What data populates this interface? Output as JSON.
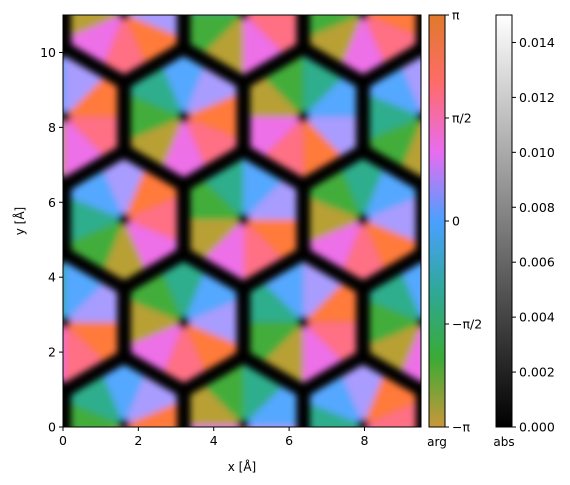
{
  "chart_data": [
    {
      "type": "heatmap",
      "title": "",
      "xlabel": "x [Å]",
      "ylabel": "y [Å]",
      "xlim": [
        0,
        9.5
      ],
      "ylim": [
        0,
        11
      ],
      "xticks": [
        0,
        2,
        4,
        6,
        8
      ],
      "yticks": [
        0,
        2,
        4,
        6,
        8,
        10
      ],
      "lattice": {
        "a1": [
          3.17,
          0
        ],
        "a2": [
          1.585,
          2.745
        ],
        "cells_x": 3,
        "rows_y": 4
      },
      "encoding": "hue = complex phase (arg), brightness = magnitude (abs)",
      "grid": false
    },
    {
      "type": "colorbar",
      "label": "arg",
      "colormap": "cyclic phase",
      "range": [
        -3.14159,
        3.14159
      ],
      "ticks": [
        {
          "value": -3.14159,
          "label": "−π"
        },
        {
          "value": -1.5708,
          "label": "−π/2"
        },
        {
          "value": 0,
          "label": "0"
        },
        {
          "value": 1.5708,
          "label": "π/2"
        },
        {
          "value": 3.14159,
          "label": "π"
        }
      ],
      "colors": [
        "#c9983a",
        "#3aaa35",
        "#2fa89a",
        "#4aa0ff",
        "#e86cf0",
        "#ff6b6b",
        "#e07a2a"
      ]
    },
    {
      "type": "colorbar",
      "label": "abs",
      "colormap": "gray",
      "range": [
        0,
        0.015
      ],
      "ticks": [
        {
          "value": 0,
          "label": "0.000"
        },
        {
          "value": 0.002,
          "label": "0.002"
        },
        {
          "value": 0.004,
          "label": "0.004"
        },
        {
          "value": 0.006,
          "label": "0.006"
        },
        {
          "value": 0.008,
          "label": "0.008"
        },
        {
          "value": 0.01,
          "label": "0.010"
        },
        {
          "value": 0.012,
          "label": "0.012"
        },
        {
          "value": 0.014,
          "label": "0.014"
        }
      ]
    }
  ]
}
